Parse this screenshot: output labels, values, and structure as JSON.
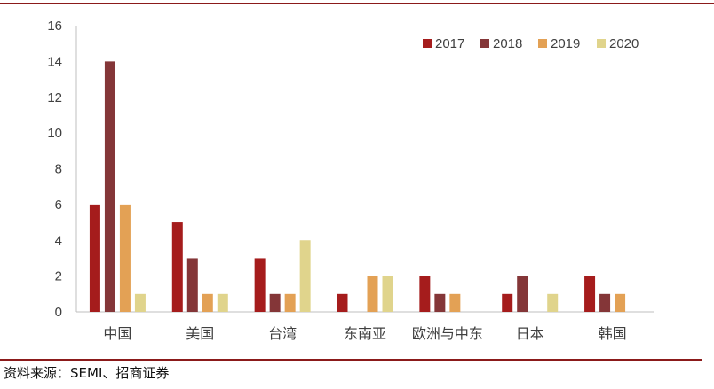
{
  "chart_data": {
    "type": "bar",
    "categories": [
      "中国",
      "美国",
      "台湾",
      "东南亚",
      "欧洲与中东",
      "日本",
      "韩国"
    ],
    "series": [
      {
        "name": "2017",
        "color": "#a51c1c",
        "values": [
          6,
          5,
          3,
          1,
          2,
          1,
          2
        ]
      },
      {
        "name": "2018",
        "color": "#843638",
        "values": [
          14,
          3,
          1,
          0,
          1,
          2,
          1
        ]
      },
      {
        "name": "2019",
        "color": "#e3a155",
        "values": [
          6,
          1,
          1,
          2,
          1,
          0,
          1
        ]
      },
      {
        "name": "2020",
        "color": "#e0d48c",
        "values": [
          1,
          1,
          4,
          2,
          0,
          1,
          0
        ]
      }
    ],
    "ylim": [
      0,
      16
    ],
    "yticks": [
      0,
      2,
      4,
      6,
      8,
      10,
      12,
      14,
      16
    ],
    "legend": "top-right",
    "grid": false
  },
  "source": "资料来源：SEMI、招商证券"
}
